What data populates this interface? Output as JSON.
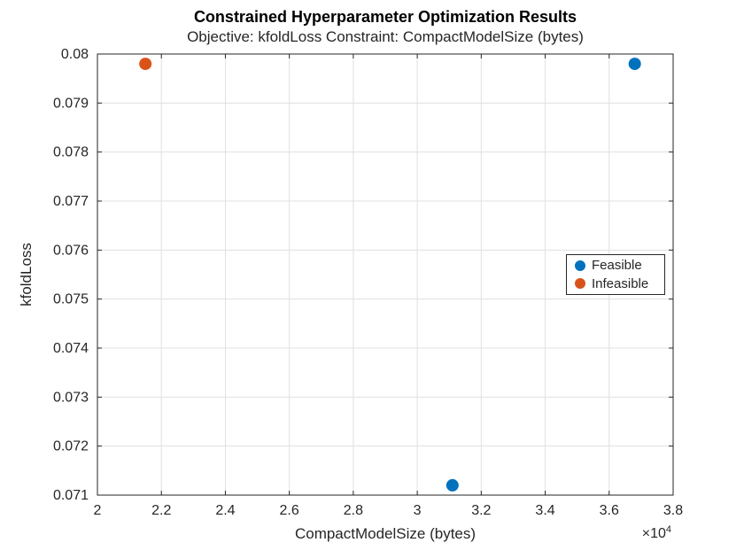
{
  "chart_data": {
    "type": "scatter",
    "title": "Constrained Hyperparameter Optimization Results",
    "subtitle": "Objective: kfoldLoss Constraint: CompactModelSize (bytes)",
    "xlabel": "CompactModelSize (bytes)",
    "ylabel": "kfoldLoss",
    "x_exponent_base": "×10",
    "x_exponent_power": "4",
    "xlim": [
      20000,
      38000
    ],
    "ylim": [
      0.071,
      0.08
    ],
    "x_ticks": [
      20000,
      22000,
      24000,
      26000,
      28000,
      30000,
      32000,
      34000,
      36000,
      38000
    ],
    "x_tick_labels": [
      "2",
      "2.2",
      "2.4",
      "2.6",
      "2.8",
      "3",
      "3.2",
      "3.4",
      "3.6",
      "3.8"
    ],
    "y_ticks": [
      0.071,
      0.072,
      0.073,
      0.074,
      0.075,
      0.076,
      0.077,
      0.078,
      0.079,
      0.08
    ],
    "y_tick_labels": [
      "0.071",
      "0.072",
      "0.073",
      "0.074",
      "0.075",
      "0.076",
      "0.077",
      "0.078",
      "0.079",
      "0.08"
    ],
    "grid": true,
    "legend_position": "middle-right",
    "series": [
      {
        "name": "Feasible",
        "color": "#0072BD",
        "marker": "filled-circle",
        "points": [
          {
            "x": 36800,
            "y": 0.0798
          },
          {
            "x": 31100,
            "y": 0.0712
          }
        ]
      },
      {
        "name": "Infeasible",
        "color": "#D95319",
        "marker": "filled-circle",
        "points": [
          {
            "x": 21500,
            "y": 0.0798
          }
        ]
      }
    ],
    "colors": {
      "axis": "#262626",
      "grid": "#e0e0e0",
      "background": "#ffffff",
      "title_text": "#000000"
    }
  }
}
